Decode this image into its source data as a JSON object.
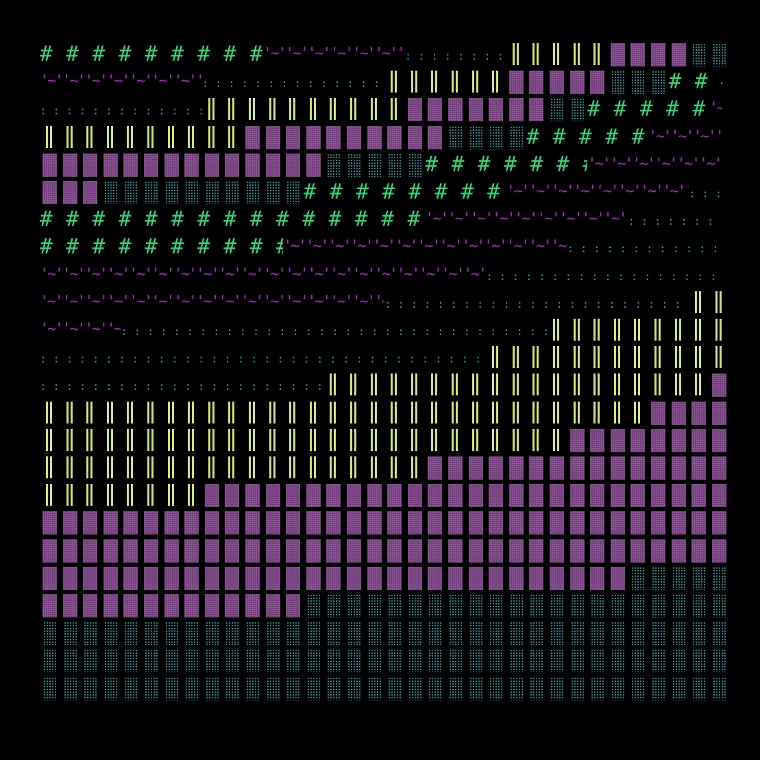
{
  "art": {
    "palette": {
      "background": "#000000",
      "hash": "#2fd67a",
      "tilde": "#b51fd0",
      "colon": "#1a9fa6",
      "bars": "#cbe37a",
      "block": "#6a3c72",
      "dots": "#1fb2b0"
    },
    "glyphs": {
      "hash": "#",
      "tilde": "'~'",
      "colon": ":",
      "bars": "double-bar",
      "block": "dotted-block",
      "dots": "dotted-cell"
    },
    "rows": [
      [
        [
          "hash",
          11
        ],
        [
          "tilde",
          7
        ],
        [
          "colon",
          5
        ],
        [
          "bars",
          5
        ],
        [
          "block",
          4
        ],
        [
          "dots",
          2
        ]
      ],
      [
        [
          "tilde",
          8
        ],
        [
          "colon",
          9
        ],
        [
          "bars",
          6
        ],
        [
          "block",
          5
        ],
        [
          "dots",
          3
        ],
        [
          "hash",
          3
        ]
      ],
      [
        [
          "colon",
          8
        ],
        [
          "bars",
          10
        ],
        [
          "block",
          7
        ],
        [
          "dots",
          2
        ],
        [
          "hash",
          6
        ],
        [
          "tilde",
          1
        ]
      ],
      [
        [
          "bars",
          10
        ],
        [
          "block",
          10
        ],
        [
          "dots",
          4
        ],
        [
          "hash",
          6
        ],
        [
          "tilde",
          4
        ]
      ],
      [
        [
          "block",
          14
        ],
        [
          "dots",
          5
        ],
        [
          "hash",
          8
        ],
        [
          "tilde",
          7
        ]
      ],
      [
        [
          "block",
          3
        ],
        [
          "dots",
          10
        ],
        [
          "hash",
          10
        ],
        [
          "tilde",
          9
        ],
        [
          "colon",
          3
        ]
      ],
      [
        [
          "hash",
          19
        ],
        [
          "tilde",
          10
        ],
        [
          "colon",
          6
        ]
      ],
      [
        [
          "hash",
          12
        ],
        [
          "tilde",
          14
        ],
        [
          "colon",
          9
        ]
      ],
      [
        [
          "tilde",
          22
        ],
        [
          "colon",
          12
        ],
        [
          "bars",
          2
        ]
      ],
      [
        [
          "tilde",
          17
        ],
        [
          "colon",
          15
        ],
        [
          "bars",
          5
        ]
      ],
      [
        [
          "tilde",
          4
        ],
        [
          "colon",
          21
        ],
        [
          "bars",
          9
        ]
      ],
      [
        [
          "colon",
          22
        ],
        [
          "bars",
          13
        ]
      ],
      [
        [
          "colon",
          14
        ],
        [
          "bars",
          19
        ],
        [
          "block",
          1
        ]
      ],
      [
        [
          "bars",
          30
        ],
        [
          "block",
          4
        ]
      ],
      [
        [
          "bars",
          26
        ],
        [
          "block",
          8
        ]
      ],
      [
        [
          "bars",
          19
        ],
        [
          "block",
          15
        ]
      ],
      [
        [
          "bars",
          8
        ],
        [
          "block",
          26
        ]
      ],
      [
        [
          "block",
          34
        ]
      ],
      [
        [
          "block",
          34
        ]
      ],
      [
        [
          "block",
          29
        ],
        [
          "dots",
          5
        ]
      ],
      [
        [
          "block",
          13
        ],
        [
          "dots",
          21
        ]
      ],
      [
        [
          "dots",
          34
        ]
      ],
      [
        [
          "dots",
          34
        ]
      ],
      [
        [
          "dots",
          34
        ]
      ]
    ]
  }
}
